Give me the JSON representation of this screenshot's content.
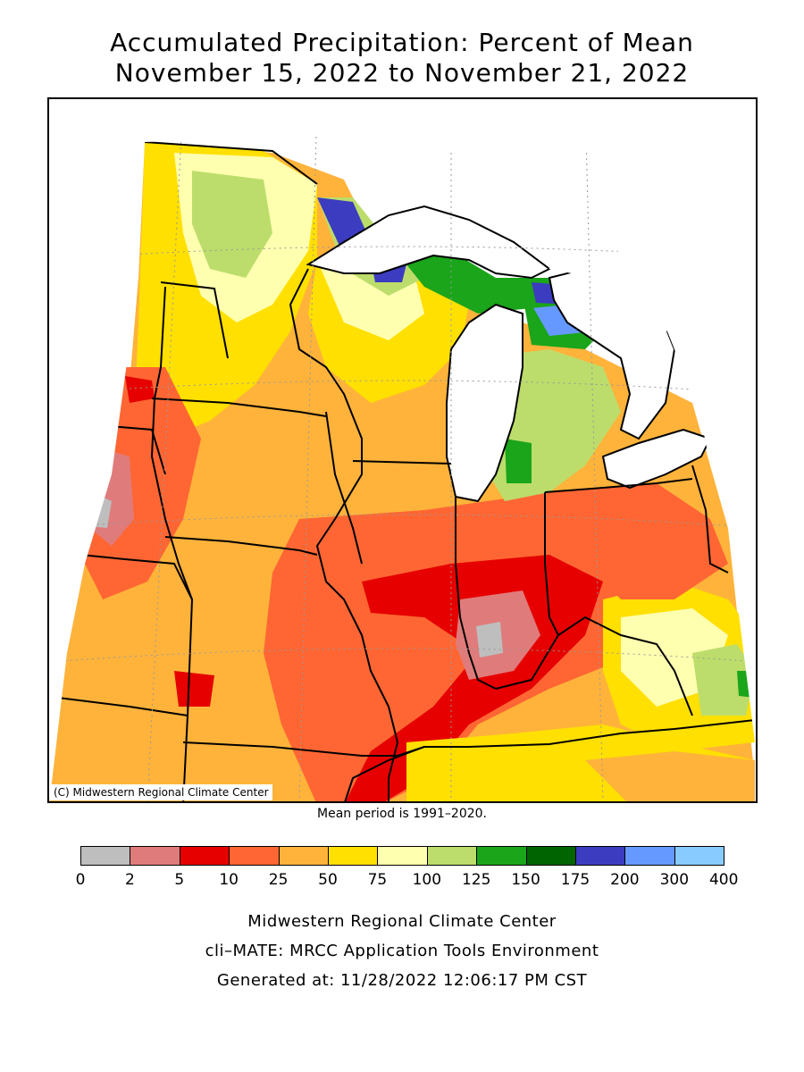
{
  "title": {
    "line1": "Accumulated Precipitation: Percent of Mean",
    "line2": "November 15, 2022 to November 21, 2022"
  },
  "map": {
    "copyright": "(C) Midwestern Regional Climate Center",
    "mean_period": "Mean period is 1991–2020."
  },
  "legend": {
    "colors": [
      "#bebebe",
      "#e07b7b",
      "#e60000",
      "#ff6633",
      "#ffb33b",
      "#ffe000",
      "#ffffb0",
      "#bcdd6b",
      "#1aa51a",
      "#006400",
      "#3c3cc0",
      "#6699ff",
      "#88ccff"
    ],
    "ticks": [
      "0",
      "2",
      "5",
      "10",
      "25",
      "50",
      "75",
      "100",
      "125",
      "150",
      "175",
      "200",
      "300",
      "400"
    ]
  },
  "footer": {
    "line1": "Midwestern Regional Climate Center",
    "line2": "cli–MATE: MRCC Application Tools Environment",
    "line3": "Generated at: 11/28/2022 12:06:17 PM CST"
  }
}
